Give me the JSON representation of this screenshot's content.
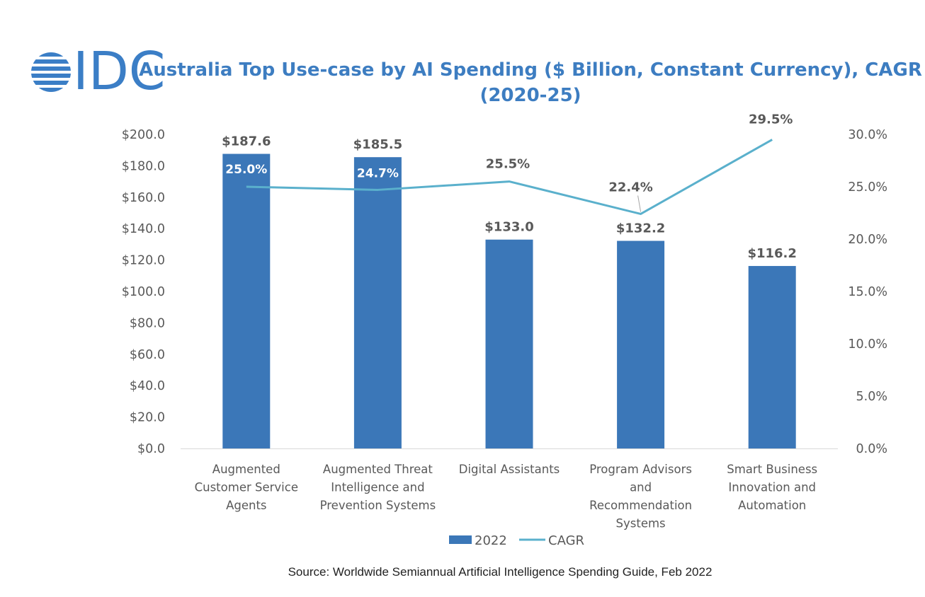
{
  "logo": {
    "text": "IDC",
    "color": "#3b7ec6"
  },
  "title_line1": "Australia Top Use-case by AI Spending ($ Billion, Constant Currency), CAGR",
  "title_line2": "(2020-25)",
  "source": "Source: Worldwide Semiannual Artificial Intelligence Spending Guide, Feb 2022",
  "colors": {
    "bar": "#3b77b8",
    "line": "#5ab0cc",
    "title": "#3d7dc1",
    "axis_text": "#595959"
  },
  "chart_data": {
    "type": "bar",
    "categories": [
      [
        "Augmented",
        "Customer Service",
        "Agents"
      ],
      [
        "Augmented Threat",
        "Intelligence and",
        "Prevention Systems"
      ],
      [
        "Digital Assistants"
      ],
      [
        "Program Advisors",
        "and",
        "Recommendation",
        "Systems"
      ],
      [
        "Smart Business",
        "Innovation and",
        "Automation"
      ]
    ],
    "series": [
      {
        "name": "2022",
        "type": "bar",
        "axis": "left",
        "values": [
          187.6,
          185.5,
          133.0,
          132.2,
          116.2
        ],
        "labels": [
          "$187.6",
          "$185.5",
          "$133.0",
          "$132.2",
          "$116.2"
        ]
      },
      {
        "name": "CAGR",
        "type": "line",
        "axis": "right",
        "values": [
          25.0,
          24.7,
          25.5,
          22.4,
          29.5
        ],
        "labels": [
          "25.0%",
          "24.7%",
          "25.5%",
          "22.4%",
          "29.5%"
        ]
      }
    ],
    "y_left": {
      "min": 0,
      "max": 200,
      "step": 20,
      "ticks": [
        "$0.0",
        "$20.0",
        "$40.0",
        "$60.0",
        "$80.0",
        "$100.0",
        "$120.0",
        "$140.0",
        "$160.0",
        "$180.0",
        "$200.0"
      ]
    },
    "y_right": {
      "min": 0,
      "max": 30,
      "step": 5,
      "ticks": [
        "0.0%",
        "5.0%",
        "10.0%",
        "15.0%",
        "20.0%",
        "25.0%",
        "30.0%"
      ]
    },
    "grid": false,
    "legend": "bottom"
  }
}
